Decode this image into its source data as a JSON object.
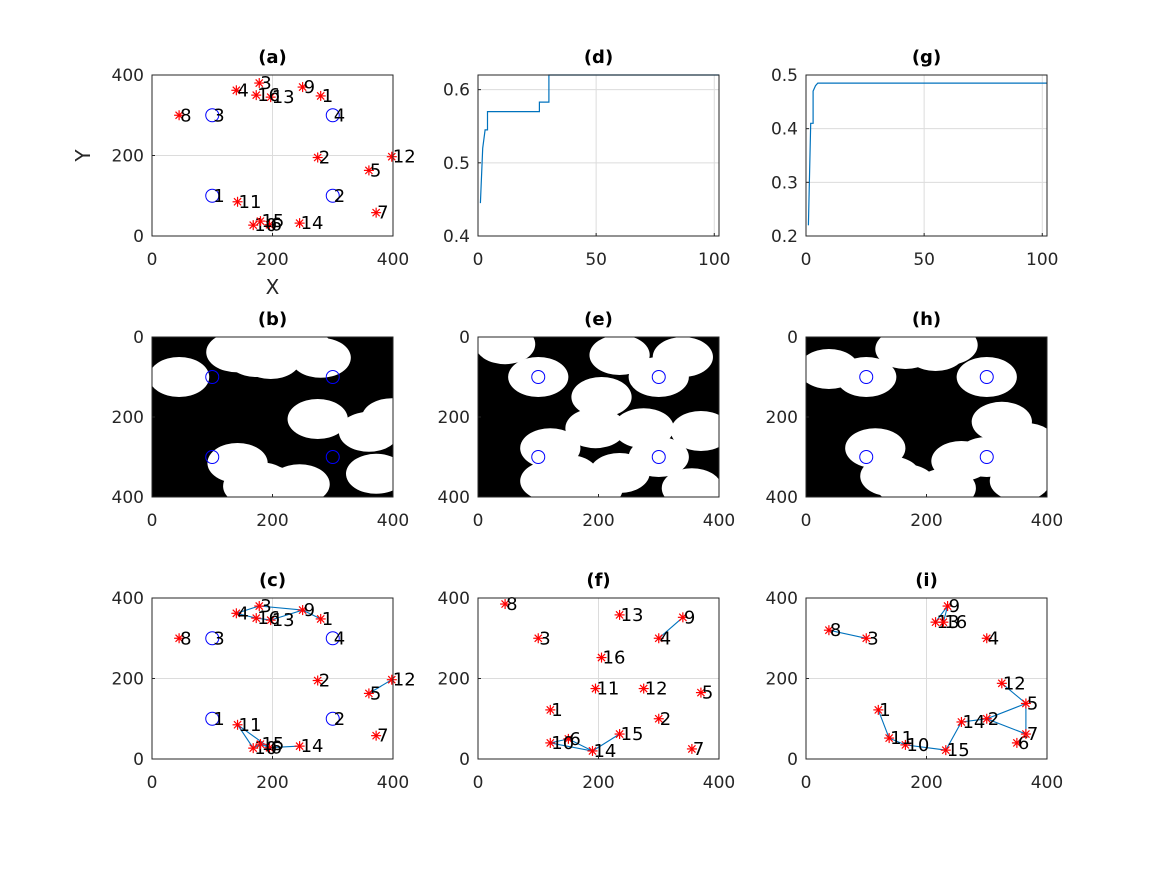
{
  "colors": {
    "star": "#ff0000",
    "circle": "#0000ff",
    "line": "#0072bd",
    "mask_bg": "#000000",
    "mask_fg": "#ffffff",
    "grid": "#dcdcdc",
    "axis": "#262626"
  },
  "chart_data": [
    {
      "id": "a",
      "type": "scatter",
      "title": "(a)",
      "xlabel": "X",
      "ylabel": "Y",
      "xlim": [
        0,
        400
      ],
      "ylim": [
        0,
        400
      ],
      "xticks": [
        0,
        200,
        400
      ],
      "yticks": [
        0,
        200,
        400
      ],
      "grid": true,
      "circles": [
        {
          "label": "1",
          "x": 100,
          "y": 100
        },
        {
          "label": "2",
          "x": 300,
          "y": 100
        },
        {
          "label": "3",
          "x": 100,
          "y": 300
        },
        {
          "label": "4",
          "x": 300,
          "y": 300
        }
      ],
      "points": [
        {
          "label": "1",
          "x": 280,
          "y": 348
        },
        {
          "label": "2",
          "x": 275,
          "y": 195
        },
        {
          "label": "3",
          "x": 178,
          "y": 380
        },
        {
          "label": "4",
          "x": 140,
          "y": 362
        },
        {
          "label": "5",
          "x": 360,
          "y": 163
        },
        {
          "label": "6",
          "x": 195,
          "y": 28
        },
        {
          "label": "7",
          "x": 372,
          "y": 58
        },
        {
          "label": "8",
          "x": 45,
          "y": 300
        },
        {
          "label": "9",
          "x": 250,
          "y": 370
        },
        {
          "label": "10",
          "x": 168,
          "y": 27
        },
        {
          "label": "11",
          "x": 142,
          "y": 85
        },
        {
          "label": "12",
          "x": 398,
          "y": 197
        },
        {
          "label": "13",
          "x": 197,
          "y": 345
        },
        {
          "label": "14",
          "x": 245,
          "y": 32
        },
        {
          "label": "15",
          "x": 180,
          "y": 37
        },
        {
          "label": "16",
          "x": 173,
          "y": 350
        }
      ],
      "path": []
    },
    {
      "id": "d",
      "type": "line",
      "title": "(d)",
      "xlim": [
        0,
        102
      ],
      "ylim": [
        0.4,
        0.62
      ],
      "xticks": [
        0,
        50,
        100
      ],
      "yticks": [
        0.4,
        0.5,
        0.6
      ],
      "grid": true,
      "series": [
        {
          "x": [
            1,
            2,
            3,
            4,
            4,
            24,
            24,
            26,
            26,
            28,
            28,
            30,
            30,
            102
          ],
          "y": [
            0.445,
            0.52,
            0.545,
            0.545,
            0.57,
            0.57,
            0.57,
            0.57,
            0.583,
            0.583,
            0.583,
            0.583,
            0.62,
            0.62
          ]
        }
      ]
    },
    {
      "id": "g",
      "type": "line",
      "title": "(g)",
      "xlim": [
        0,
        102
      ],
      "ylim": [
        0.2,
        0.5
      ],
      "xticks": [
        0,
        50,
        100
      ],
      "yticks": [
        0.2,
        0.3,
        0.4,
        0.5
      ],
      "grid": true,
      "series": [
        {
          "x": [
            1,
            2,
            2,
            3,
            3,
            4,
            4,
            5,
            102
          ],
          "y": [
            0.22,
            0.41,
            0.41,
            0.41,
            0.47,
            0.48,
            0.48,
            0.485,
            0.485
          ]
        }
      ]
    },
    {
      "id": "b",
      "type": "heatmap",
      "title": "(b)",
      "xlim": [
        0,
        400
      ],
      "ylim": [
        400,
        0
      ],
      "xticks": [
        0,
        200,
        400
      ],
      "yticks": [
        0,
        200,
        400
      ],
      "grid": false,
      "circles": [
        {
          "x": 100,
          "y": 100
        },
        {
          "x": 300,
          "y": 100
        },
        {
          "x": 100,
          "y": 300
        },
        {
          "x": 300,
          "y": 300
        }
      ],
      "disks": [
        {
          "x": 45,
          "y": 100,
          "r": 50
        },
        {
          "x": 140,
          "y": 38,
          "r": 50
        },
        {
          "x": 178,
          "y": 20,
          "r": 50
        },
        {
          "x": 250,
          "y": 30,
          "r": 50
        },
        {
          "x": 280,
          "y": 52,
          "r": 50
        },
        {
          "x": 197,
          "y": 55,
          "r": 50
        },
        {
          "x": 173,
          "y": 50,
          "r": 50
        },
        {
          "x": 275,
          "y": 205,
          "r": 50
        },
        {
          "x": 360,
          "y": 237,
          "r": 50
        },
        {
          "x": 398,
          "y": 203,
          "r": 50
        },
        {
          "x": 142,
          "y": 315,
          "r": 50
        },
        {
          "x": 180,
          "y": 363,
          "r": 50
        },
        {
          "x": 168,
          "y": 373,
          "r": 50
        },
        {
          "x": 195,
          "y": 372,
          "r": 50
        },
        {
          "x": 245,
          "y": 368,
          "r": 50
        },
        {
          "x": 372,
          "y": 342,
          "r": 50
        }
      ]
    },
    {
      "id": "e",
      "type": "heatmap",
      "title": "(e)",
      "xlim": [
        0,
        400
      ],
      "ylim": [
        400,
        0
      ],
      "xticks": [
        0,
        200,
        400
      ],
      "yticks": [
        0,
        200,
        400
      ],
      "grid": false,
      "circles": [
        {
          "x": 100,
          "y": 100
        },
        {
          "x": 300,
          "y": 100
        },
        {
          "x": 100,
          "y": 300
        },
        {
          "x": 300,
          "y": 300
        }
      ],
      "disks": [
        {
          "x": 45,
          "y": 18,
          "r": 50
        },
        {
          "x": 100,
          "y": 100,
          "r": 50
        },
        {
          "x": 235,
          "y": 45,
          "r": 50
        },
        {
          "x": 340,
          "y": 50,
          "r": 50
        },
        {
          "x": 300,
          "y": 100,
          "r": 50
        },
        {
          "x": 205,
          "y": 150,
          "r": 50
        },
        {
          "x": 195,
          "y": 228,
          "r": 50
        },
        {
          "x": 275,
          "y": 228,
          "r": 50
        },
        {
          "x": 370,
          "y": 235,
          "r": 50
        },
        {
          "x": 300,
          "y": 300,
          "r": 50
        },
        {
          "x": 235,
          "y": 340,
          "r": 50
        },
        {
          "x": 120,
          "y": 278,
          "r": 50
        },
        {
          "x": 150,
          "y": 345,
          "r": 50
        },
        {
          "x": 120,
          "y": 360,
          "r": 50
        },
        {
          "x": 190,
          "y": 380,
          "r": 50
        },
        {
          "x": 355,
          "y": 378,
          "r": 50
        }
      ]
    },
    {
      "id": "h",
      "type": "heatmap",
      "title": "(h)",
      "xlim": [
        0,
        400
      ],
      "ylim": [
        400,
        0
      ],
      "xticks": [
        0,
        200,
        400
      ],
      "yticks": [
        0,
        200,
        400
      ],
      "grid": false,
      "circles": [
        {
          "x": 100,
          "y": 100
        },
        {
          "x": 300,
          "y": 100
        },
        {
          "x": 100,
          "y": 300
        },
        {
          "x": 300,
          "y": 300
        }
      ],
      "disks": [
        {
          "x": 38,
          "y": 80,
          "r": 50
        },
        {
          "x": 100,
          "y": 100,
          "r": 50
        },
        {
          "x": 165,
          "y": 30,
          "r": 50
        },
        {
          "x": 215,
          "y": 35,
          "r": 50
        },
        {
          "x": 235,
          "y": 20,
          "r": 50
        },
        {
          "x": 300,
          "y": 100,
          "r": 50
        },
        {
          "x": 115,
          "y": 278,
          "r": 50
        },
        {
          "x": 140,
          "y": 348,
          "r": 50
        },
        {
          "x": 165,
          "y": 368,
          "r": 50
        },
        {
          "x": 232,
          "y": 378,
          "r": 50
        },
        {
          "x": 258,
          "y": 310,
          "r": 50
        },
        {
          "x": 300,
          "y": 300,
          "r": 50
        },
        {
          "x": 325,
          "y": 212,
          "r": 50
        },
        {
          "x": 365,
          "y": 265,
          "r": 50
        },
        {
          "x": 365,
          "y": 338,
          "r": 50
        },
        {
          "x": 355,
          "y": 360,
          "r": 50
        }
      ]
    },
    {
      "id": "c",
      "type": "scatter",
      "title": "(c)",
      "xlim": [
        0,
        400
      ],
      "ylim": [
        0,
        400
      ],
      "xticks": [
        0,
        200,
        400
      ],
      "yticks": [
        0,
        200,
        400
      ],
      "grid": true,
      "circles": [
        {
          "label": "1",
          "x": 100,
          "y": 100
        },
        {
          "label": "2",
          "x": 300,
          "y": 100
        },
        {
          "label": "3",
          "x": 100,
          "y": 300
        },
        {
          "label": "4",
          "x": 300,
          "y": 300
        }
      ],
      "points": [
        {
          "label": "1",
          "x": 280,
          "y": 348
        },
        {
          "label": "2",
          "x": 275,
          "y": 195
        },
        {
          "label": "3",
          "x": 178,
          "y": 380
        },
        {
          "label": "4",
          "x": 140,
          "y": 362
        },
        {
          "label": "5",
          "x": 360,
          "y": 163
        },
        {
          "label": "6",
          "x": 195,
          "y": 28
        },
        {
          "label": "7",
          "x": 372,
          "y": 58
        },
        {
          "label": "8",
          "x": 45,
          "y": 300
        },
        {
          "label": "9",
          "x": 250,
          "y": 370
        },
        {
          "label": "10",
          "x": 168,
          "y": 27
        },
        {
          "label": "11",
          "x": 142,
          "y": 85
        },
        {
          "label": "12",
          "x": 398,
          "y": 197
        },
        {
          "label": "13",
          "x": 197,
          "y": 345
        },
        {
          "label": "14",
          "x": 245,
          "y": 32
        },
        {
          "label": "15",
          "x": 180,
          "y": 37
        },
        {
          "label": "16",
          "x": 173,
          "y": 350
        }
      ],
      "path": [
        {
          "x": 178,
          "y": 380
        },
        {
          "x": 140,
          "y": 362
        },
        {
          "x": 173,
          "y": 350
        },
        {
          "x": 197,
          "y": 345
        },
        {
          "x": 250,
          "y": 370
        },
        {
          "x": 280,
          "y": 348
        },
        {
          "x": 250,
          "y": 370
        },
        {
          "x": 178,
          "y": 380
        },
        {
          "x": null,
          "y": null
        },
        {
          "x": 142,
          "y": 85
        },
        {
          "x": 168,
          "y": 27
        },
        {
          "x": 180,
          "y": 37
        },
        {
          "x": 195,
          "y": 28
        },
        {
          "x": 245,
          "y": 32
        },
        {
          "x": 195,
          "y": 28
        },
        {
          "x": 142,
          "y": 85
        },
        {
          "x": null,
          "y": null
        },
        {
          "x": 360,
          "y": 163
        },
        {
          "x": 398,
          "y": 197
        }
      ]
    },
    {
      "id": "f",
      "type": "scatter",
      "title": "(f)",
      "xlim": [
        0,
        400
      ],
      "ylim": [
        0,
        400
      ],
      "xticks": [
        0,
        200,
        400
      ],
      "yticks": [
        0,
        200,
        400
      ],
      "grid": true,
      "circles": [],
      "points": [
        {
          "label": "1",
          "x": 120,
          "y": 122
        },
        {
          "label": "2",
          "x": 300,
          "y": 100
        },
        {
          "label": "3",
          "x": 100,
          "y": 300
        },
        {
          "label": "4",
          "x": 300,
          "y": 300
        },
        {
          "label": "5",
          "x": 370,
          "y": 165
        },
        {
          "label": "6",
          "x": 150,
          "y": 50
        },
        {
          "label": "7",
          "x": 355,
          "y": 25
        },
        {
          "label": "8",
          "x": 45,
          "y": 385
        },
        {
          "label": "9",
          "x": 340,
          "y": 352
        },
        {
          "label": "10",
          "x": 120,
          "y": 40
        },
        {
          "label": "11",
          "x": 195,
          "y": 175
        },
        {
          "label": "12",
          "x": 275,
          "y": 175
        },
        {
          "label": "13",
          "x": 235,
          "y": 358
        },
        {
          "label": "14",
          "x": 190,
          "y": 20
        },
        {
          "label": "15",
          "x": 235,
          "y": 62
        },
        {
          "label": "16",
          "x": 205,
          "y": 252
        }
      ],
      "path": [
        {
          "x": 300,
          "y": 300
        },
        {
          "x": 340,
          "y": 352
        },
        {
          "x": null,
          "y": null
        },
        {
          "x": 120,
          "y": 40
        },
        {
          "x": 150,
          "y": 50
        },
        {
          "x": 190,
          "y": 20
        },
        {
          "x": 235,
          "y": 62
        },
        {
          "x": 190,
          "y": 20
        },
        {
          "x": 120,
          "y": 40
        }
      ]
    },
    {
      "id": "i",
      "type": "scatter",
      "title": "(i)",
      "xlim": [
        0,
        400
      ],
      "ylim": [
        0,
        400
      ],
      "xticks": [
        0,
        200,
        400
      ],
      "yticks": [
        0,
        200,
        400
      ],
      "grid": true,
      "circles": [],
      "points": [
        {
          "label": "1",
          "x": 120,
          "y": 122
        },
        {
          "label": "2",
          "x": 300,
          "y": 100
        },
        {
          "label": "3",
          "x": 100,
          "y": 300
        },
        {
          "label": "4",
          "x": 300,
          "y": 300
        },
        {
          "label": "5",
          "x": 365,
          "y": 138
        },
        {
          "label": "6",
          "x": 350,
          "y": 40
        },
        {
          "label": "7",
          "x": 365,
          "y": 62
        },
        {
          "label": "8",
          "x": 38,
          "y": 320
        },
        {
          "label": "9",
          "x": 235,
          "y": 380
        },
        {
          "label": "10",
          "x": 165,
          "y": 35
        },
        {
          "label": "11",
          "x": 138,
          "y": 52
        },
        {
          "label": "12",
          "x": 325,
          "y": 188
        },
        {
          "label": "13",
          "x": 215,
          "y": 340
        },
        {
          "label": "14",
          "x": 258,
          "y": 92
        },
        {
          "label": "15",
          "x": 232,
          "y": 22
        },
        {
          "label": "16",
          "x": 228,
          "y": 340
        }
      ],
      "path": [
        {
          "x": 38,
          "y": 320
        },
        {
          "x": 100,
          "y": 300
        },
        {
          "x": null,
          "y": null
        },
        {
          "x": 215,
          "y": 340
        },
        {
          "x": 235,
          "y": 380
        },
        {
          "x": 228,
          "y": 340
        },
        {
          "x": 215,
          "y": 340
        },
        {
          "x": null,
          "y": null
        },
        {
          "x": 120,
          "y": 122
        },
        {
          "x": 138,
          "y": 52
        },
        {
          "x": 165,
          "y": 35
        },
        {
          "x": 232,
          "y": 22
        },
        {
          "x": 258,
          "y": 92
        },
        {
          "x": 300,
          "y": 100
        },
        {
          "x": 365,
          "y": 138
        },
        {
          "x": 325,
          "y": 188
        },
        {
          "x": 365,
          "y": 138
        },
        {
          "x": 365,
          "y": 62
        },
        {
          "x": 350,
          "y": 40
        },
        {
          "x": 365,
          "y": 62
        },
        {
          "x": 300,
          "y": 100
        },
        {
          "x": 258,
          "y": 92
        },
        {
          "x": 232,
          "y": 22
        }
      ]
    }
  ]
}
